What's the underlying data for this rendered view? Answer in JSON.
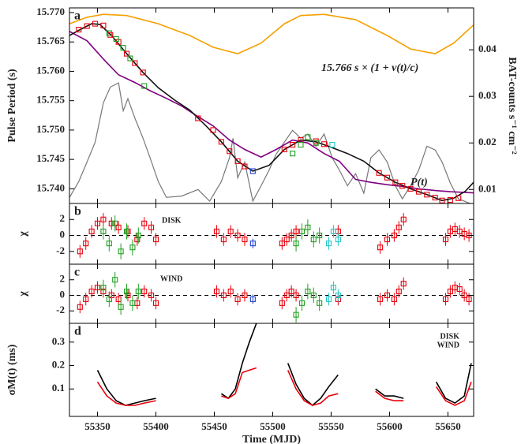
{
  "chart_data": [
    {
      "type": "line",
      "panel_label": "a",
      "ylabel": "Pulse Period (s)",
      "y2label": "BAT-counts s⁻¹ cm⁻²",
      "annotations": [
        "15.766 s × (1 + v(t)/c)",
        "P(t)"
      ],
      "ylim": [
        15.7375,
        15.7708
      ],
      "yticks": [
        {
          "value": 15.74,
          "label": "15.740"
        },
        15.745,
        {
          "value": 15.75,
          "label": "15.750"
        },
        15.755,
        {
          "value": 15.76,
          "label": "15.760"
        },
        15.765,
        {
          "value": 15.77,
          "label": "15.770"
        }
      ],
      "y2lim": [
        0.007,
        0.049
      ],
      "y2ticks": [
        0.01,
        0.02,
        0.03,
        0.04
      ],
      "series": [
        {
          "kind": "line",
          "axis": "y2",
          "color": "#777777",
          "x": [
            55326,
            55334,
            55341,
            55348,
            55355,
            55361,
            55368,
            55372,
            55376,
            55382,
            55389,
            55395,
            55402,
            55409,
            55422,
            55436,
            55446,
            55456,
            55463,
            55466,
            55470,
            55476,
            55483,
            55490,
            55497,
            55503,
            55510,
            55517,
            55524,
            55530,
            55537,
            55544,
            55551,
            55557,
            55564,
            55571,
            55578,
            55584,
            55591,
            55598,
            55605,
            55611,
            55618,
            55625,
            55632,
            55639,
            55645,
            55652,
            55659,
            55669
          ],
          "values": [
            0.0083,
            0.0117,
            0.0159,
            0.0202,
            0.0286,
            0.032,
            0.0329,
            0.0269,
            0.0295,
            0.0253,
            0.021,
            0.0168,
            0.0117,
            0.0083,
            0.0086,
            0.01,
            0.0075,
            0.0117,
            0.0168,
            0.021,
            0.0125,
            0.0159,
            0.0075,
            0.0108,
            0.0142,
            0.0176,
            0.0202,
            0.0227,
            0.021,
            0.0219,
            0.0193,
            0.0219,
            0.0168,
            0.0142,
            0.0108,
            0.0134,
            0.0092,
            0.0168,
            0.0185,
            0.0159,
            0.0108,
            0.008,
            0.0108,
            0.0142,
            0.0193,
            0.0185,
            0.0159,
            0.0114,
            0.008,
            0.007
          ]
        },
        {
          "kind": "line",
          "color": "#f5a000",
          "x": [
            55326,
            55341,
            55355,
            55375,
            55402,
            55429,
            55449,
            55470,
            55490,
            55510,
            55524,
            55544,
            55571,
            55598,
            55618,
            55639,
            55655,
            55672
          ],
          "values": [
            15.7681,
            15.7692,
            15.7697,
            15.7695,
            15.7681,
            15.7661,
            15.7641,
            15.763,
            15.7648,
            15.7681,
            15.7695,
            15.7697,
            15.7688,
            15.7661,
            15.7638,
            15.763,
            15.7648,
            15.7679
          ]
        },
        {
          "kind": "line",
          "color": "#800080",
          "x": [
            55326,
            55341,
            55355,
            55368,
            55382,
            55395,
            55409,
            55422,
            55436,
            55449,
            55463,
            55476,
            55490,
            55503,
            55517,
            55530,
            55544,
            55557,
            55571,
            55584,
            55598,
            55611,
            55625,
            55639,
            55652,
            55672
          ],
          "values": [
            15.7668,
            15.7652,
            15.7621,
            15.7594,
            15.7581,
            15.7567,
            15.7554,
            15.7541,
            15.7523,
            15.7507,
            15.7483,
            15.7467,
            15.7454,
            15.7467,
            15.7483,
            15.7478,
            15.746,
            15.7447,
            15.7416,
            15.7411,
            15.7407,
            15.7404,
            15.74,
            15.7397,
            15.7395,
            15.7393
          ]
        },
        {
          "kind": "line",
          "color": "#111111",
          "x": [
            55326,
            55335,
            55345,
            55352,
            55362,
            55375,
            55389,
            55402,
            55416,
            55429,
            55443,
            55456,
            55470,
            55483,
            55497,
            55510,
            55524,
            55537,
            55551,
            55564,
            55578,
            55591,
            55605,
            55618,
            55632,
            55645,
            55655,
            55665,
            55672
          ],
          "values": [
            15.7661,
            15.7671,
            15.7681,
            15.768,
            15.7661,
            15.763,
            15.7598,
            15.7572,
            15.7551,
            15.7534,
            15.7507,
            15.748,
            15.7447,
            15.743,
            15.744,
            15.7467,
            15.7483,
            15.748,
            15.747,
            15.746,
            15.7447,
            15.7427,
            15.7411,
            15.74,
            15.739,
            15.738,
            15.7384,
            15.7396,
            15.7411
          ]
        },
        {
          "kind": "marker",
          "color": "#e8000b",
          "x": [
            55334,
            55341,
            55348,
            55355,
            55361,
            55368,
            55375,
            55382,
            55389,
            55436,
            55449,
            55456,
            55463,
            55470,
            55476,
            55510,
            55517,
            55524,
            55537,
            55544,
            55591,
            55598,
            55605,
            55611,
            55618,
            55625,
            55632,
            55639,
            55645,
            55652,
            55659
          ],
          "values": [
            15.7671,
            15.7677,
            15.7681,
            15.7678,
            15.7662,
            15.765,
            15.763,
            15.7614,
            15.7598,
            15.752,
            15.75,
            15.748,
            15.7464,
            15.7447,
            15.7438,
            15.7467,
            15.7475,
            15.7483,
            15.7481,
            15.7476,
            15.7427,
            15.7419,
            15.7411,
            15.7405,
            15.74,
            15.7395,
            15.739,
            15.7385,
            15.738,
            15.7381,
            15.7384
          ]
        },
        {
          "kind": "marker",
          "color": "#22a022",
          "x": [
            55360,
            55366,
            55372,
            55378,
            55390,
            55517,
            55524,
            55530,
            55537
          ],
          "values": [
            15.7665,
            15.7655,
            15.764,
            15.7622,
            15.7575,
            15.746,
            15.7475,
            15.7488,
            15.7478
          ]
        },
        {
          "kind": "marker",
          "color": "#1f3fd0",
          "x": [
            55483
          ],
          "values": [
            15.743
          ]
        },
        {
          "kind": "marker",
          "color": "#20c8c8",
          "x": [
            55551
          ],
          "values": [
            15.7475
          ]
        }
      ]
    },
    {
      "type": "scatter",
      "panel_label": "b",
      "ylabel": "χ",
      "annotations": [
        "DISK"
      ],
      "zero_line": true,
      "ylim": [
        -3.6,
        4
      ],
      "yticks": [
        -2,
        0,
        2
      ],
      "series": [
        {
          "kind": "marker",
          "color": "#e8000b",
          "error": 0.8,
          "x": [
            55335,
            55340,
            55345,
            55350,
            55355,
            55362,
            55368,
            55376,
            55384,
            55390,
            55396,
            55400,
            55452,
            55458,
            55464,
            55470,
            55476,
            55508,
            55512,
            55516,
            55520,
            55556,
            55592,
            55598,
            55604,
            55608,
            55612,
            55648,
            55652,
            55656,
            55660,
            55664,
            55668
          ],
          "values": [
            -2.0,
            -1.0,
            0.5,
            1.5,
            2.0,
            1.5,
            1.0,
            0.5,
            -0.5,
            1.5,
            1.0,
            -0.5,
            0.5,
            -0.5,
            0.5,
            0.0,
            -0.5,
            -1.0,
            -0.5,
            0.0,
            0.5,
            0.5,
            -1.5,
            -0.5,
            0.0,
            1.0,
            2.0,
            -0.5,
            0.5,
            0.8,
            0.5,
            0.2,
            0.0
          ]
        },
        {
          "kind": "marker",
          "color": "#22a022",
          "error": 1.0,
          "x": [
            55355,
            55360,
            55365,
            55370,
            55375,
            55380,
            55385,
            55520,
            55525,
            55530,
            55535,
            55540
          ],
          "values": [
            0.5,
            -1.0,
            1.5,
            -2.0,
            0.5,
            -1.5,
            0.0,
            -1.0,
            0.5,
            1.0,
            -0.5,
            0.0
          ]
        },
        {
          "kind": "marker",
          "color": "#20c8c8",
          "error": 0.8,
          "x": [
            55548,
            55552,
            55556
          ],
          "values": [
            -1.0,
            0.5,
            -0.5
          ]
        },
        {
          "kind": "marker",
          "color": "#1f3fd0",
          "error": 0.6,
          "x": [
            55483
          ],
          "values": [
            -1.0
          ]
        }
      ]
    },
    {
      "type": "scatter",
      "panel_label": "c",
      "ylabel": "χ",
      "annotations": [
        "WIND"
      ],
      "zero_line": true,
      "ylim": [
        -3.6,
        4
      ],
      "yticks": [
        -2,
        0,
        2
      ],
      "series": [
        {
          "kind": "marker",
          "color": "#e8000b",
          "error": 0.8,
          "x": [
            55335,
            55340,
            55345,
            55350,
            55355,
            55362,
            55368,
            55376,
            55384,
            55390,
            55396,
            55400,
            55452,
            55458,
            55464,
            55470,
            55476,
            55508,
            55512,
            55516,
            55520,
            55556,
            55592,
            55598,
            55604,
            55608,
            55612,
            55648,
            55652,
            55656,
            55660,
            55664,
            55668
          ],
          "values": [
            -1.5,
            -0.5,
            0.5,
            1.0,
            0.5,
            0.0,
            -0.5,
            0.0,
            -1.0,
            0.5,
            0.0,
            -1.0,
            0.5,
            0.0,
            0.5,
            -0.5,
            0.0,
            -1.0,
            0.0,
            0.5,
            0.0,
            -0.5,
            -0.5,
            0.0,
            -0.5,
            0.5,
            1.5,
            -0.5,
            0.5,
            1.0,
            0.8,
            0.0,
            -0.5
          ]
        },
        {
          "kind": "marker",
          "color": "#22a022",
          "error": 1.0,
          "x": [
            55355,
            55360,
            55365,
            55370,
            55375,
            55380,
            55385,
            55520,
            55525,
            55530,
            55535,
            55540
          ],
          "values": [
            1.0,
            -0.5,
            2.0,
            -1.5,
            0.5,
            -1.0,
            0.5,
            -2.5,
            -1.0,
            0.5,
            0.0,
            -1.0
          ]
        },
        {
          "kind": "marker",
          "color": "#20c8c8",
          "error": 0.8,
          "x": [
            55548,
            55552,
            55556
          ],
          "values": [
            -0.5,
            1.0,
            0.0
          ]
        },
        {
          "kind": "marker",
          "color": "#1f3fd0",
          "error": 0.6,
          "x": [
            55483
          ],
          "values": [
            -0.5
          ]
        }
      ]
    },
    {
      "type": "line",
      "panel_label": "d",
      "ylabel": "σM(t) (ms)",
      "xlabel": "Time (MJD)",
      "xlim": [
        55326,
        55672
      ],
      "xticks": [
        55350,
        55400,
        55450,
        55500,
        55550,
        55600,
        55650
      ],
      "ylim": [
        -0.017,
        0.38
      ],
      "yticks": [
        0.1,
        0.2,
        0.3
      ],
      "series": [
        {
          "kind": "line",
          "name": "DISK",
          "color": "#000000",
          "x": [
            55350,
            55358,
            55366,
            55374,
            55382,
            55390,
            55400,
            55420,
            55456,
            55462,
            55468,
            55474,
            55480,
            55486,
            55500,
            55513,
            55520,
            55527,
            55534,
            55541,
            55548,
            55556,
            55575,
            55588,
            55596,
            55604,
            55612,
            55625,
            55640,
            55648,
            55656,
            55664,
            55670
          ],
          "values": [
            0.18,
            0.1,
            0.05,
            0.03,
            0.04,
            0.05,
            0.06,
            null,
            0.08,
            0.06,
            0.1,
            0.21,
            0.3,
            0.38,
            null,
            0.21,
            0.12,
            0.06,
            0.03,
            0.06,
            0.11,
            0.16,
            null,
            0.1,
            0.07,
            0.07,
            0.06,
            null,
            0.13,
            0.06,
            0.04,
            0.07,
            0.21
          ]
        },
        {
          "kind": "line",
          "name": "WIND",
          "color": "#e8000b",
          "x": [
            55350,
            55358,
            55366,
            55374,
            55382,
            55390,
            55400,
            55420,
            55456,
            55462,
            55468,
            55474,
            55480,
            55486,
            55500,
            55513,
            55520,
            55527,
            55534,
            55541,
            55548,
            55556,
            55575,
            55588,
            55596,
            55604,
            55612,
            55625,
            55640,
            55648,
            55656,
            55664,
            55670
          ],
          "values": [
            0.13,
            0.07,
            0.04,
            0.03,
            0.03,
            0.04,
            0.05,
            null,
            0.07,
            0.06,
            0.08,
            0.17,
            0.18,
            0.19,
            null,
            0.18,
            0.1,
            0.05,
            0.03,
            0.04,
            0.07,
            0.08,
            null,
            0.09,
            0.06,
            0.05,
            0.05,
            null,
            0.11,
            0.05,
            0.03,
            0.05,
            0.13
          ]
        }
      ]
    }
  ]
}
